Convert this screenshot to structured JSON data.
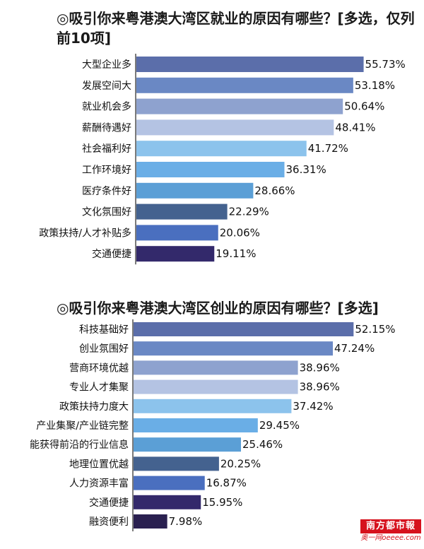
{
  "chart_data": [
    {
      "type": "bar",
      "orientation": "horizontal",
      "title": "◎吸引你来粤港澳大湾区就业的原因有哪些？[多选，仅列前10项]",
      "categories": [
        "大型企业多",
        "发展空间大",
        "就业机会多",
        "薪酬待遇好",
        "社会福利好",
        "工作环境好",
        "医疗条件好",
        "文化氛围好",
        "政策扶持/人才补贴多",
        "交通便捷"
      ],
      "values": [
        55.73,
        53.18,
        50.64,
        48.41,
        41.72,
        36.31,
        28.66,
        22.29,
        20.06,
        19.11
      ],
      "value_labels": [
        "55.73%",
        "53.18%",
        "50.64%",
        "48.41%",
        "41.72%",
        "36.31%",
        "28.66%",
        "22.29%",
        "20.06%",
        "19.11%"
      ],
      "colors": [
        "#5b6eaa",
        "#6a88c4",
        "#8ea2cf",
        "#b4c3e3",
        "#8cc3ec",
        "#6aaee6",
        "#5b9fd6",
        "#44628f",
        "#4a6fbf",
        "#33296b"
      ],
      "xlim": [
        0,
        60
      ],
      "legend": "none",
      "grid": false
    },
    {
      "type": "bar",
      "orientation": "horizontal",
      "title": "◎吸引你来粤港澳大湾区创业的原因有哪些？[多选]",
      "categories": [
        "科技基础好",
        "创业氛围好",
        "营商环境优越",
        "专业人才集聚",
        "政策扶持力度大",
        "产业集聚/产业链完整",
        "能获得前沿的行业信息",
        "地理位置优越",
        "人力资源丰富",
        "交通便捷",
        "融资便利"
      ],
      "values": [
        52.15,
        47.24,
        38.96,
        38.96,
        37.42,
        29.45,
        25.46,
        20.25,
        16.87,
        15.95,
        7.98
      ],
      "value_labels": [
        "52.15%",
        "47.24%",
        "38.96%",
        "38.96%",
        "37.42%",
        "29.45%",
        "25.46%",
        "20.25%",
        "16.87%",
        "15.95%",
        "7.98%"
      ],
      "colors": [
        "#5b6eaa",
        "#6a88c4",
        "#8ea2cf",
        "#b4c3e3",
        "#8cc3ec",
        "#6aaee6",
        "#5b9fd6",
        "#44628f",
        "#4a6fbf",
        "#33296b",
        "#2a2050"
      ],
      "xlim": [
        0,
        60
      ],
      "legend": "none",
      "grid": false
    }
  ],
  "watermark": {
    "main": "南方都市報",
    "sub": "奥一网oeeee.com",
    "color": "#d6111d"
  }
}
